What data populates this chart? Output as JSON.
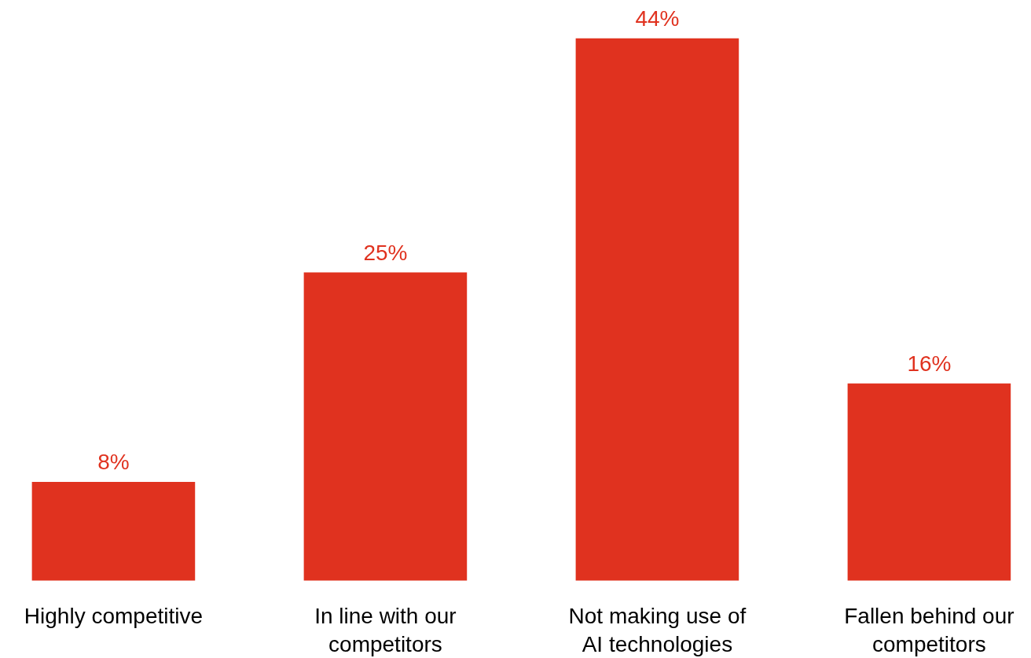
{
  "chart_data": {
    "type": "bar",
    "categories": [
      "Highly competitive",
      "In line with our competitors",
      "Not making use of AI technologies",
      "Fallen behind our competitors"
    ],
    "values": [
      8,
      25,
      44,
      16
    ],
    "color": "#e0321f",
    "value_labels": [
      "8%",
      "25%",
      "44%",
      "16%"
    ],
    "grid": false
  }
}
